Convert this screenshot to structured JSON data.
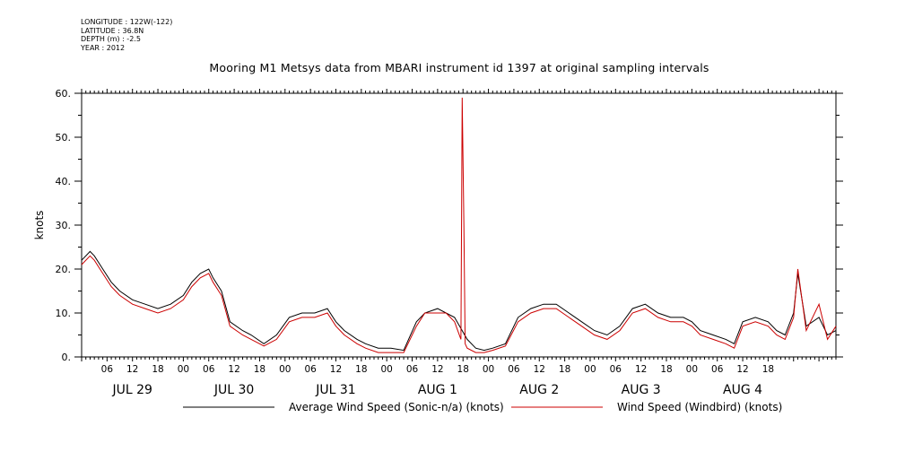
{
  "header": {
    "longitude": "LONGITUDE : 122W(-122)",
    "latitude": "LATITUDE : 36.8N",
    "depth": "DEPTH (m) : -2.5",
    "year": "YEAR : 2012",
    "title": "Mooring M1 Metsys data from MBARI instrument id 1397 at original sampling intervals"
  },
  "colors": {
    "average": "#000000",
    "windbird": "#cc0000"
  },
  "chart_data": {
    "type": "line",
    "title": "Mooring M1 Metsys data from MBARI instrument id 1397 at original sampling intervals",
    "ylabel": "knots",
    "xlabel": "",
    "ylim": [
      0,
      60
    ],
    "xlim_hours": [
      0,
      178
    ],
    "x_units": "hours since 2012-07-29 00:00",
    "yticks": [
      "0.",
      "10.",
      "20.",
      "30.",
      "40.",
      "50.",
      "60."
    ],
    "xtick_labels": [
      "06",
      "12",
      "18",
      "00",
      "06",
      "12",
      "18",
      "00",
      "06",
      "12",
      "18",
      "00",
      "06",
      "12",
      "18",
      "00",
      "06",
      "12",
      "18",
      "00",
      "06",
      "12",
      "18",
      "00",
      "06",
      "12",
      "18"
    ],
    "day_labels": [
      "JUL 29",
      "JUL 30",
      "JUL 31",
      "AUG  1",
      "AUG  2",
      "AUG  3",
      "AUG  4"
    ],
    "legend": [
      "Average Wind Speed (Sonic-n/a) (knots)",
      "Wind Speed (Windbird) (knots)"
    ],
    "series": [
      {
        "name": "Average Wind Speed (Sonic-n/a) (knots)",
        "x": [
          0,
          2,
          3,
          5,
          7,
          9,
          12,
          15,
          18,
          21,
          24,
          26,
          28,
          30,
          31,
          33,
          35,
          38,
          40,
          43,
          46,
          49,
          52,
          55,
          58,
          60,
          62,
          65,
          67,
          70,
          73,
          76,
          79,
          81,
          84,
          86,
          88,
          91,
          93,
          95,
          97,
          100,
          103,
          106,
          109,
          112,
          115,
          118,
          121,
          124,
          127,
          130,
          133,
          136,
          139,
          142,
          144,
          146,
          149,
          152,
          154,
          156,
          159,
          162,
          164,
          166,
          168,
          169,
          171,
          174,
          176,
          178
        ],
        "y": [
          22,
          24,
          23,
          20,
          17,
          15,
          13,
          12,
          11,
          12,
          14,
          17,
          19,
          20,
          18,
          15,
          8,
          6,
          5,
          3,
          5,
          9,
          10,
          10,
          11,
          8,
          6,
          4,
          3,
          2,
          2,
          1.5,
          8,
          10,
          11,
          10,
          9,
          4,
          2,
          1.5,
          2,
          3,
          9,
          11,
          12,
          12,
          10,
          8,
          6,
          5,
          7,
          11,
          12,
          10,
          9,
          9,
          8,
          6,
          5,
          4,
          3,
          8,
          9,
          8,
          6,
          5,
          10,
          19,
          7,
          9,
          5,
          6
        ]
      },
      {
        "name": "Wind Speed (Windbird) (knots)",
        "x": [
          0,
          2,
          3,
          5,
          7,
          9,
          12,
          15,
          18,
          21,
          24,
          26,
          28,
          30,
          31,
          33,
          35,
          38,
          40,
          43,
          46,
          49,
          52,
          55,
          58,
          60,
          62,
          65,
          67,
          70,
          73,
          76,
          79,
          81,
          84,
          86,
          88,
          89.5,
          89.8,
          90.2,
          90.5,
          91,
          93,
          95,
          97,
          100,
          103,
          106,
          109,
          112,
          115,
          118,
          121,
          124,
          127,
          130,
          133,
          136,
          139,
          142,
          144,
          146,
          149,
          152,
          154,
          156,
          159,
          162,
          164,
          166,
          168,
          169,
          171,
          174,
          176,
          178
        ],
        "y": [
          21,
          23,
          22,
          19,
          16,
          14,
          12,
          11,
          10,
          11,
          13,
          16,
          18,
          19,
          17,
          14,
          7,
          5,
          4,
          2.5,
          4,
          8,
          9,
          9,
          10,
          7,
          5,
          3,
          2,
          1,
          1,
          1,
          7,
          10,
          10,
          10,
          8,
          4,
          59,
          30,
          3,
          2,
          1,
          1,
          1.5,
          2.5,
          8,
          10,
          11,
          11,
          9,
          7,
          5,
          4,
          6,
          10,
          11,
          9,
          8,
          8,
          7,
          5,
          4,
          3,
          2,
          7,
          8,
          7,
          5,
          4,
          9,
          20,
          6,
          12,
          4,
          7
        ]
      }
    ]
  }
}
